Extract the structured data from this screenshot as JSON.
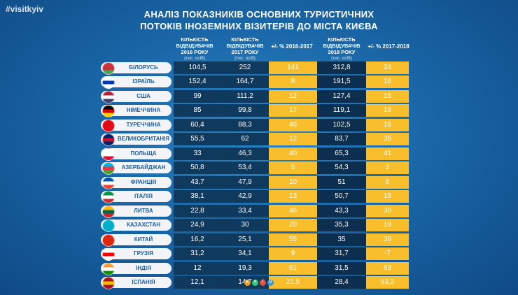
{
  "hashtag": "#visitkyiv",
  "title_line1": "АНАЛІЗ ПОКАЗНИКІВ ОСНОВНИХ ТУРИСТИЧНИХ",
  "title_line2": "ПОТОКІВ ІНОЗЕМНИХ ВІЗИТЕРІВ ДО МІСТА КИЄВА",
  "headers": {
    "col2016": "КІЛЬКІСТЬ ВІДВІДУВАЧІВ 2016 РОКУ",
    "col2017": "КІЛЬКІСТЬ ВІДВІДУВАЧІВ 2017 РОКУ",
    "col2018": "КІЛЬКІСТЬ ВІДВІДУВАЧІВ 2018 РОКУ",
    "unit": "(тис. осіб)",
    "pct1617": "+/- % 2016-2017",
    "pct1718": "+/- % 2017-2018"
  },
  "logo_letters": [
    "К",
    "Y",
    "Ї",
    "V"
  ],
  "chart_data": {
    "type": "table",
    "columns": [
      "КІЛЬКІСТЬ ВІДВІДУВАЧІВ 2016 РОКУ (тис. осіб)",
      "КІЛЬКІСТЬ ВІДВІДУВАЧІВ 2017 РОКУ (тис. осіб)",
      "+/- % 2016-2017",
      "КІЛЬКІСТЬ ВІДВІДУВАЧІВ 2018 РОКУ (тис. осіб)",
      "+/- % 2017-2018"
    ],
    "rows": [
      {
        "country": "БІЛОРУСЬ",
        "flag": [
          "#c8313e",
          "#c8313e",
          "#4aa657"
        ],
        "v2016": "104,5",
        "v2017": "252",
        "p1617": "141",
        "v2018": "312,8",
        "p1718": "24"
      },
      {
        "country": "ІЗРАЇЛЬ",
        "flag": [
          "#ffffff",
          "#0038b8",
          "#ffffff"
        ],
        "v2016": "152,4",
        "v2017": "164,7",
        "p1617": "8",
        "v2018": "191,5",
        "p1718": "16"
      },
      {
        "country": "США",
        "flag": [
          "#b22234",
          "#ffffff",
          "#3c3b6e"
        ],
        "v2016": "99",
        "v2017": "111,2",
        "p1617": "12",
        "v2018": "127,4",
        "p1718": "15"
      },
      {
        "country": "НІМЕЧЧИНА",
        "flag": [
          "#000000",
          "#dd0000",
          "#ffce00"
        ],
        "v2016": "85",
        "v2017": "99,8",
        "p1617": "17",
        "v2018": "119,1",
        "p1718": "19"
      },
      {
        "country": "ТУРЕЧЧИНА",
        "flag": [
          "#e30a17",
          "#e30a17",
          "#e30a17"
        ],
        "v2016": "60,4",
        "v2017": "88,3",
        "p1617": "46",
        "v2018": "102,5",
        "p1718": "16"
      },
      {
        "country": "ВЕЛИКОБРИТАНІЯ",
        "flag": [
          "#012169",
          "#c8102e",
          "#012169"
        ],
        "v2016": "55,5",
        "v2017": "62",
        "p1617": "12",
        "v2018": "83,7",
        "p1718": "35"
      },
      {
        "country": "ПОЛЬЩА",
        "flag": [
          "#ffffff",
          "#ffffff",
          "#dc143c"
        ],
        "v2016": "33",
        "v2017": "46,3",
        "p1617": "40",
        "v2018": "65,3",
        "p1718": "41"
      },
      {
        "country": "АЗЕРБАЙДЖАН",
        "flag": [
          "#00b5e2",
          "#ef3340",
          "#509e2f"
        ],
        "v2016": "50,8",
        "v2017": "53,4",
        "p1617": "5",
        "v2018": "54,3",
        "p1718": "2"
      },
      {
        "country": "ФРАНЦІЯ",
        "flag": [
          "#0055a4",
          "#ffffff",
          "#ef4135"
        ],
        "v2016": "43,7",
        "v2017": "47,9",
        "p1617": "10",
        "v2018": "51",
        "p1718": "6"
      },
      {
        "country": "ІТАЛІЯ",
        "flag": [
          "#009246",
          "#ffffff",
          "#ce2b37"
        ],
        "v2016": "38,1",
        "v2017": "42,9",
        "p1617": "13",
        "v2018": "50,7",
        "p1718": "18"
      },
      {
        "country": "ЛИТВА",
        "flag": [
          "#fdb913",
          "#006a44",
          "#c1272d"
        ],
        "v2016": "22,8",
        "v2017": "33,4",
        "p1617": "46",
        "v2018": "43,3",
        "p1718": "30"
      },
      {
        "country": "КАЗАХСТАН",
        "flag": [
          "#00afca",
          "#00afca",
          "#00afca"
        ],
        "v2016": "24,9",
        "v2017": "30",
        "p1617": "20",
        "v2018": "35,3",
        "p1718": "18"
      },
      {
        "country": "КИТАЙ",
        "flag": [
          "#de2910",
          "#de2910",
          "#de2910"
        ],
        "v2016": "16,2",
        "v2017": "25,1",
        "p1617": "55",
        "v2018": "35",
        "p1718": "39"
      },
      {
        "country": "ГРУЗІЯ",
        "flag": [
          "#ffffff",
          "#ff0000",
          "#ffffff"
        ],
        "v2016": "31,2",
        "v2017": "34,1",
        "p1617": "9",
        "v2018": "31,7",
        "p1718": "-7"
      },
      {
        "country": "ІНДІЯ",
        "flag": [
          "#ff9933",
          "#ffffff",
          "#138808"
        ],
        "v2016": "12",
        "v2017": "19,3",
        "p1617": "61",
        "v2018": "31,5",
        "p1718": "63"
      },
      {
        "country": "ІСПАНІЯ",
        "flag": [
          "#aa151b",
          "#f1bf00",
          "#aa151b"
        ],
        "v2016": "12,1",
        "v2017": "14,7",
        "p1617": "21,5",
        "v2018": "28,4",
        "p1718": "93,2"
      }
    ]
  }
}
